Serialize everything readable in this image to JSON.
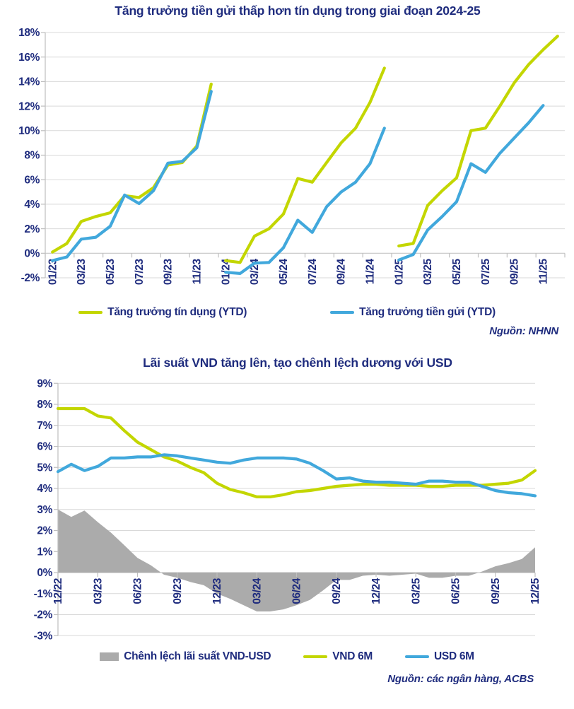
{
  "colors": {
    "navy": "#1F2C7E",
    "lime": "#C3D600",
    "blue": "#41A8DC",
    "gray_area": "#ABABAB",
    "grid": "#D9D9D9",
    "axis": "#BFBFBF",
    "background": "#FFFFFF"
  },
  "chart_data": [
    {
      "id": "credit-vs-deposit-growth",
      "type": "line",
      "title": "Tăng trưởng tiền gửi thấp hơn tín dụng trong giai đoạn 2024-25",
      "source": "Nguồn: NHNN",
      "ylabel": "",
      "y_axis": {
        "min": -2,
        "max": 18,
        "step": 2,
        "suffix": "%"
      },
      "x_categories_count": 36,
      "x_label_every": 2,
      "x_tick_labels": [
        "01/23",
        "03/23",
        "05/23",
        "07/23",
        "09/23",
        "11/23",
        "01/24",
        "03/24",
        "05/24",
        "07/24",
        "09/24",
        "11/24",
        "01/25",
        "03/25",
        "05/25",
        "07/25",
        "09/25",
        "11/25"
      ],
      "grid": true,
      "legend_position": "bottom",
      "series": [
        {
          "name": "Tăng trưởng tín dụng (YTD)",
          "color": "lime",
          "segments": [
            {
              "start": 0,
              "values": [
                0.1,
                0.8,
                2.6,
                3.0,
                3.3,
                4.7,
                4.55,
                5.35,
                7.2,
                7.4,
                8.75,
                13.8
              ]
            },
            {
              "start": 12,
              "values": [
                -0.6,
                -0.75,
                1.4,
                2.0,
                3.2,
                6.1,
                5.8,
                7.4,
                9.0,
                10.2,
                12.3,
                15.1
              ]
            },
            {
              "start": 24,
              "values": [
                0.6,
                0.8,
                3.9,
                5.1,
                6.15,
                10.0,
                10.2,
                12.0,
                13.9,
                15.4,
                16.6,
                17.7
              ]
            }
          ]
        },
        {
          "name": "Tăng trưởng tiền gửi (YTD)",
          "color": "blue",
          "segments": [
            {
              "start": 0,
              "values": [
                -0.6,
                -0.3,
                1.15,
                1.3,
                2.2,
                4.75,
                4.05,
                5.1,
                7.35,
                7.5,
                8.6,
                13.2
              ]
            },
            {
              "start": 12,
              "values": [
                -1.55,
                -1.65,
                -0.8,
                -0.75,
                0.45,
                2.7,
                1.7,
                3.8,
                5.0,
                5.8,
                7.3,
                10.2
              ]
            },
            {
              "start": 24,
              "values": [
                -0.55,
                -0.1,
                1.9,
                3.0,
                4.2,
                7.3,
                6.6,
                8.15,
                9.4,
                10.65,
                12.05
              ]
            }
          ]
        }
      ]
    },
    {
      "id": "vnd-usd-interest-rates",
      "type": "line+area",
      "title": "Lãi suất VND tăng lên, tạo chênh lệch dương với USD",
      "source": "Nguồn: các ngân hàng, ACBS",
      "ylabel": "",
      "y_axis": {
        "min": -3,
        "max": 9,
        "step": 1,
        "suffix": "%"
      },
      "x_label_every": 3,
      "x_tick_labels": [
        "12/22",
        "03/23",
        "06/23",
        "09/23",
        "12/23",
        "03/24",
        "06/24",
        "09/24",
        "12/24",
        "03/25",
        "06/25",
        "09/25",
        "12/25"
      ],
      "grid": true,
      "legend_position": "bottom",
      "area_series": {
        "name": "Chênh lệch lãi suất VND-USD",
        "color": "gray_area",
        "derived": "VND 6M minus USD 6M"
      },
      "series": [
        {
          "name": "VND 6M",
          "color": "lime",
          "values": [
            7.8,
            7.8,
            7.8,
            7.45,
            7.35,
            6.75,
            6.2,
            5.85,
            5.5,
            5.3,
            5.0,
            4.75,
            4.25,
            3.95,
            3.8,
            3.6,
            3.6,
            3.7,
            3.85,
            3.9,
            4.0,
            4.1,
            4.15,
            4.2,
            4.2,
            4.15,
            4.15,
            4.15,
            4.1,
            4.1,
            4.15,
            4.15,
            4.15,
            4.2,
            4.25,
            4.4,
            4.85
          ]
        },
        {
          "name": "USD 6M",
          "color": "blue",
          "values": [
            4.8,
            5.15,
            4.85,
            5.05,
            5.45,
            5.45,
            5.5,
            5.5,
            5.6,
            5.55,
            5.45,
            5.35,
            5.25,
            5.2,
            5.35,
            5.45,
            5.45,
            5.45,
            5.4,
            5.2,
            4.85,
            4.45,
            4.5,
            4.35,
            4.3,
            4.3,
            4.25,
            4.2,
            4.35,
            4.35,
            4.3,
            4.3,
            4.1,
            3.9,
            3.8,
            3.75,
            3.65
          ]
        }
      ]
    }
  ]
}
